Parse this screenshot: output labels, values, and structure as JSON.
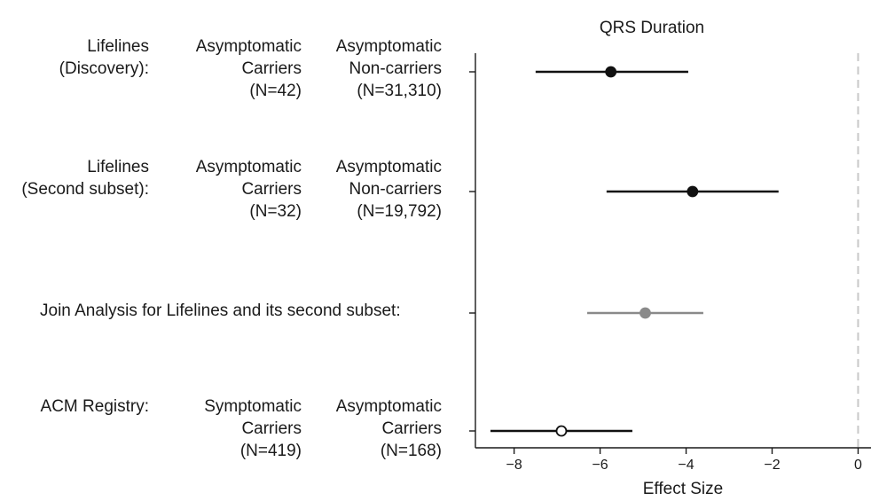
{
  "rows": [
    {
      "study": "Lifelines\n(Discovery):",
      "group1": "Asymptomatic\nCarriers\n(N=42)",
      "group2": "Asymptomatic\nNon-carriers\n(N=31,310)"
    },
    {
      "study": "Lifelines\n(Second subset):",
      "group1": "Asymptomatic\nCarriers\n(N=32)",
      "group2": "Asymptomatic\nNon-carriers\n(N=19,792)"
    },
    {
      "study": "Join Analysis for Lifelines and its second subset:"
    },
    {
      "study": "ACM Registry:",
      "group1": "Symptomatic\nCarriers\n(N=419)",
      "group2": "Asymptomatic\nCarriers\n(N=168)"
    }
  ],
  "chart_data": {
    "type": "forest",
    "title": "QRS Duration",
    "xlabel": "Effect Size",
    "xlim": [
      -8.9,
      0.3
    ],
    "xticks": [
      -8,
      -6,
      -4,
      -2,
      0
    ],
    "tick_labels": [
      "−8",
      "−6",
      "−4",
      "−2",
      "0"
    ],
    "reference_line": 0,
    "colors": {
      "axis": "#1a1a1a",
      "ref_line": "#c8c8c8",
      "gray": "#8a8a8a",
      "black": "#111111"
    },
    "estimates": [
      {
        "row": 0,
        "estimate": -5.75,
        "ci_low": -7.5,
        "ci_high": -3.95,
        "marker": "filled",
        "color": "#111111"
      },
      {
        "row": 1,
        "estimate": -3.85,
        "ci_low": -5.85,
        "ci_high": -1.85,
        "marker": "filled",
        "color": "#111111"
      },
      {
        "row": 2,
        "estimate": -4.95,
        "ci_low": -6.3,
        "ci_high": -3.6,
        "marker": "filled",
        "color": "#8a8a8a"
      },
      {
        "row": 3,
        "estimate": -6.9,
        "ci_low": -8.55,
        "ci_high": -5.25,
        "marker": "open",
        "color": "#111111"
      }
    ]
  }
}
